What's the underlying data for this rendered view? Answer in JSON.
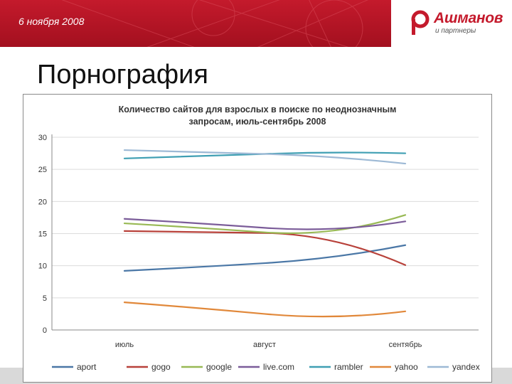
{
  "header": {
    "date": "6 ноября 2008",
    "logo_name": "Ашманов",
    "logo_sub": "и партнеры"
  },
  "slide": {
    "title": "Порнография"
  },
  "colors": {
    "header_red": "#c41a2c",
    "aport": "#4a77a6",
    "gogo": "#b8413a",
    "google": "#98b954",
    "live_com": "#7b5c99",
    "rambler": "#3f9fb3",
    "yahoo": "#e1883a",
    "yandex": "#9db9d5"
  },
  "chart_data": {
    "type": "line",
    "title": "Количество сайтов для взрослых в поиске по неоднозначным запросам, июль-сентябрь 2008",
    "title_lines": [
      "Количество сайтов для взрослых в поиске по неоднозначным",
      "запросам, июль-сентябрь 2008"
    ],
    "categories": [
      "июль",
      "август",
      "сентябрь"
    ],
    "ylim": [
      0,
      30
    ],
    "yticks": [
      "0",
      "5",
      "10",
      "15",
      "20",
      "25",
      "30"
    ],
    "grid": "horizontal",
    "legend_position": "bottom",
    "series": [
      {
        "name": "aport",
        "values": [
          9.2,
          10.4,
          13.2
        ]
      },
      {
        "name": "gogo",
        "values": [
          15.4,
          15.1,
          10.1
        ]
      },
      {
        "name": "google",
        "values": [
          16.6,
          15.2,
          17.9
        ]
      },
      {
        "name": "live.com",
        "values": [
          17.3,
          15.9,
          16.9
        ]
      },
      {
        "name": "rambler",
        "values": [
          26.7,
          27.4,
          27.5
        ]
      },
      {
        "name": "yahoo",
        "values": [
          4.3,
          2.5,
          2.9
        ]
      },
      {
        "name": "yandex",
        "values": [
          28.0,
          27.4,
          25.9
        ]
      }
    ]
  }
}
